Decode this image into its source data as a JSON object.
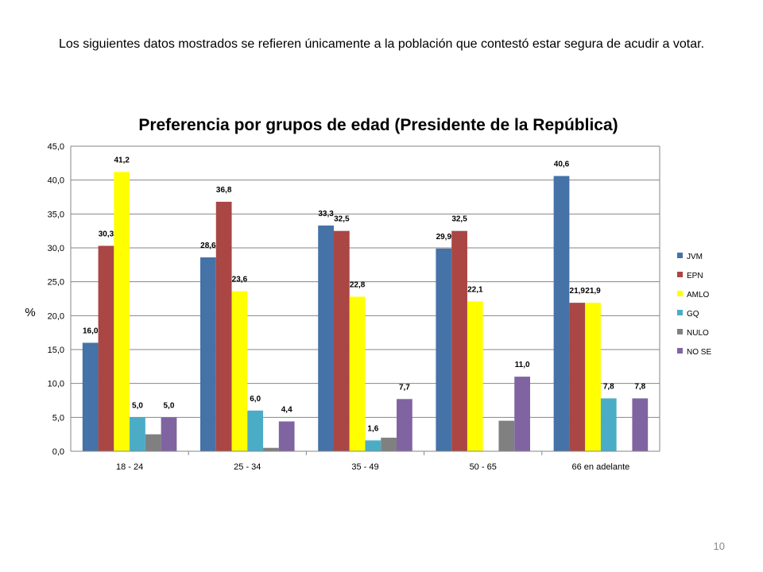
{
  "note": "Los siguientes datos mostrados se refieren únicamente a la población que contestó estar segura de acudir a votar.",
  "slide_number": "10",
  "chart_data": {
    "type": "bar",
    "title": "Preferencia por grupos de edad (Presidente de la República)",
    "xlabel": "",
    "ylabel": "%",
    "ylim": [
      0,
      45
    ],
    "ytick_step": 5,
    "grid": true,
    "legend_position": "right",
    "categories": [
      "18 - 24",
      "25 - 34",
      "35 - 49",
      "50 - 65",
      "66 en adelante"
    ],
    "series": [
      {
        "name": "JVM",
        "color": "#4572A7",
        "values": [
          16.0,
          28.6,
          33.3,
          29.9,
          40.6
        ],
        "labels": [
          "16,0",
          "28,6",
          "33,3",
          "29,9",
          "40,6"
        ]
      },
      {
        "name": "EPN",
        "color": "#AA4643",
        "values": [
          30.3,
          36.8,
          32.5,
          32.5,
          21.9
        ],
        "labels": [
          "30,3",
          "36,8",
          "32,5",
          "32,5",
          "21,9"
        ]
      },
      {
        "name": "AMLO",
        "color": "#FFFF00",
        "values": [
          41.2,
          23.6,
          22.8,
          22.1,
          21.9
        ],
        "labels": [
          "41,2",
          "23,6",
          "22,8",
          "22,1",
          "21,9"
        ]
      },
      {
        "name": "GQ",
        "color": "#4BACC6",
        "values": [
          5.0,
          6.0,
          1.6,
          0,
          7.8
        ],
        "labels": [
          "5,0",
          "6,0",
          "1,6",
          "",
          "7,8"
        ]
      },
      {
        "name": "NULO",
        "color": "#808080",
        "values": [
          2.5,
          0.5,
          2.0,
          4.5,
          0
        ],
        "labels": [
          "",
          "",
          "",
          "",
          ""
        ]
      },
      {
        "name": "NO SE",
        "color": "#8064A2",
        "values": [
          5.0,
          4.4,
          7.7,
          11.0,
          7.8
        ],
        "labels": [
          "5,0",
          "4,4",
          "7,7",
          "11,0",
          "7,8"
        ]
      }
    ]
  }
}
